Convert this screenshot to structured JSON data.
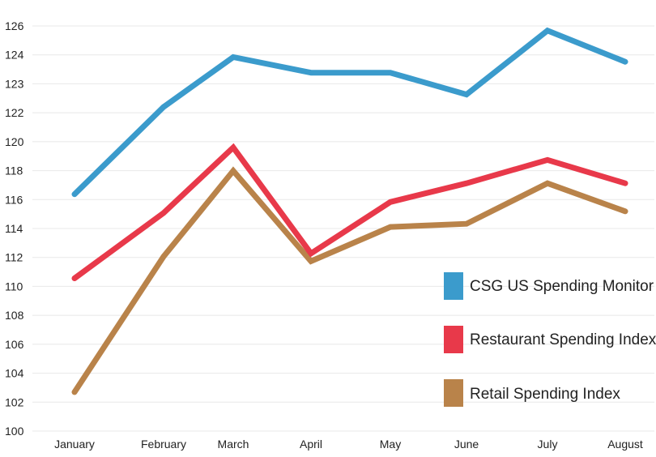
{
  "chart_data": {
    "type": "line",
    "title": "",
    "xlabel": "",
    "ylabel": "",
    "categories": [
      "January",
      "February",
      "March",
      "April",
      "May",
      "June",
      "July",
      "August"
    ],
    "y_tick_labels": [
      "100",
      "102",
      "104",
      "106",
      "108",
      "110",
      "112",
      "114",
      "116",
      "118",
      "120",
      "122",
      "123",
      "124",
      "126"
    ],
    "ylim": [
      100,
      126
    ],
    "grid": true,
    "legend_position": "right",
    "series": [
      {
        "name": "CSG US Spending Monitor",
        "color": "#3b9bcc",
        "values": [
          115.2,
          120.8,
          124.0,
          123.0,
          123.0,
          121.6,
          125.7,
          123.7
        ]
      },
      {
        "name": "Restaurant Spending Index",
        "color": "#e8394a",
        "values": [
          109.8,
          114.0,
          118.2,
          111.4,
          114.7,
          115.9,
          117.4,
          115.9
        ]
      },
      {
        "name": "Retail Spending Index",
        "color": "#b9834a",
        "values": [
          102.5,
          111.2,
          116.7,
          110.9,
          113.1,
          113.3,
          115.9,
          114.1
        ]
      }
    ]
  }
}
